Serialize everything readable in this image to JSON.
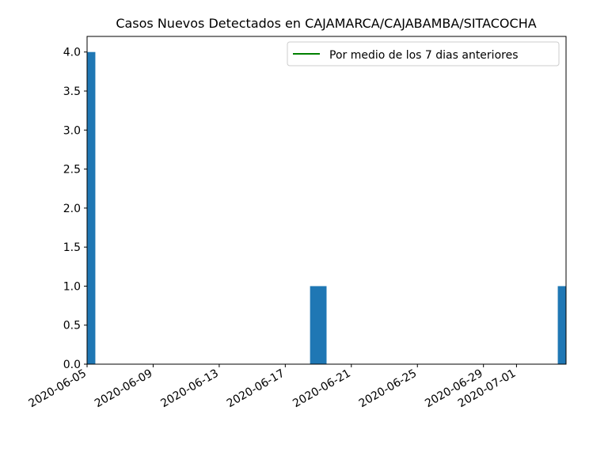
{
  "chart_data": {
    "type": "bar",
    "title": "Casos Nuevos Detectados en CAJAMARCA/CAJABAMBA/SITACOCHA",
    "xlabel": "",
    "ylabel": "",
    "x_axis_type": "date",
    "xlim": [
      "2020-06-05",
      "2020-07-04"
    ],
    "ylim": [
      0,
      4.2
    ],
    "x_ticks": [
      "2020-06-05",
      "2020-06-09",
      "2020-06-13",
      "2020-06-17",
      "2020-06-21",
      "2020-06-25",
      "2020-06-29",
      "2020-07-01"
    ],
    "y_ticks": [
      "0.0",
      "0.5",
      "1.0",
      "1.5",
      "2.0",
      "2.5",
      "3.0",
      "3.5",
      "4.0"
    ],
    "series": [
      {
        "type": "bar",
        "color": "#1f77b4",
        "points": [
          {
            "x": "2020-06-05",
            "y": 4
          },
          {
            "x": "2020-06-19",
            "y": 1
          },
          {
            "x": "2020-07-04",
            "y": 1
          }
        ]
      },
      {
        "type": "line",
        "name": "Por medio de los 7 dias anteriores",
        "color": "#008000",
        "points": []
      }
    ],
    "legend": {
      "position": "top-right",
      "entries": [
        "Por medio de los 7 dias anteriores"
      ]
    },
    "grid": false
  }
}
